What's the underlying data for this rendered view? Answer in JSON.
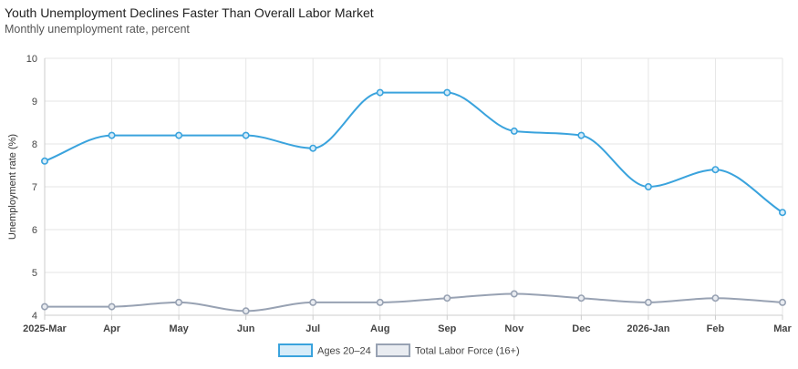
{
  "chart_data": {
    "type": "line",
    "title": "Youth Unemployment Declines Faster Than Overall Labor Market",
    "subtitle": "Monthly unemployment rate, percent",
    "ylabel": "Unemployment rate (%)",
    "xlabel": "",
    "categories": [
      "2025-Mar",
      "Apr",
      "May",
      "Jun",
      "Jul",
      "Aug",
      "Sep",
      "Nov",
      "Dec",
      "2026-Jan",
      "Feb",
      "Mar"
    ],
    "ylim": [
      4,
      10
    ],
    "yticks": [
      4,
      5,
      6,
      7,
      8,
      9,
      10
    ],
    "grid": true,
    "legend_position": "bottom",
    "series": [
      {
        "name": "Ages 20–24",
        "color": "#3aa3dd",
        "fill": "#d6ecf9",
        "values": [
          7.6,
          8.2,
          8.2,
          8.2,
          7.9,
          9.2,
          9.2,
          8.3,
          8.2,
          7.0,
          7.4,
          6.4
        ]
      },
      {
        "name": "Total Labor Force (16+)",
        "color": "#98a2b3",
        "fill": "#e9ecf1",
        "values": [
          4.2,
          4.2,
          4.3,
          4.1,
          4.3,
          4.3,
          4.4,
          4.5,
          4.4,
          4.3,
          4.4,
          4.3
        ]
      }
    ]
  }
}
